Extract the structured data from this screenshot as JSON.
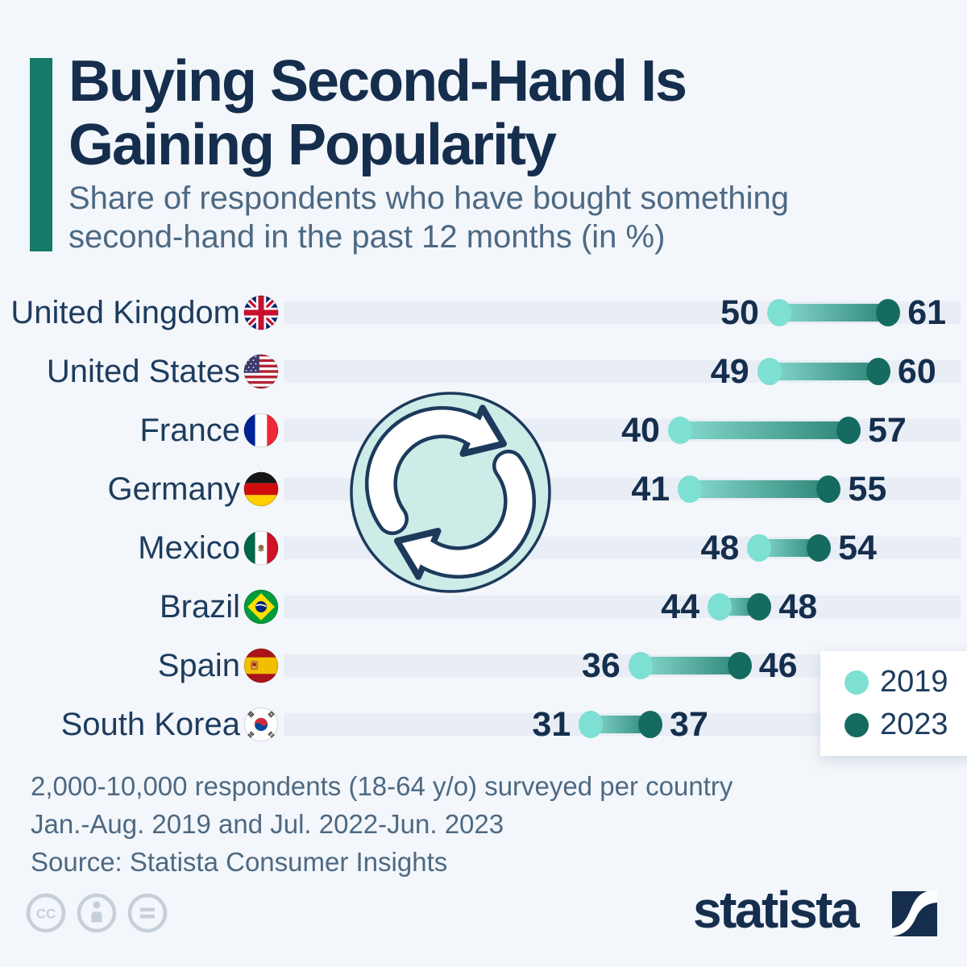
{
  "header": {
    "title_line1": "Buying Second-Hand Is",
    "title_line2": "Gaining Popularity",
    "subtitle": "Share of respondents who have bought something second-hand in the past 12 months (in %)"
  },
  "chart_data": {
    "type": "dumbbell",
    "title": "Buying Second-Hand Is Gaining Popularity",
    "subtitle": "Share of respondents who have bought something second-hand in the past 12 months (in %)",
    "categories": [
      "United Kingdom",
      "United States",
      "France",
      "Germany",
      "Mexico",
      "Brazil",
      "Spain",
      "South Korea"
    ],
    "flags": [
      "gb",
      "us",
      "fr",
      "de",
      "mx",
      "br",
      "es",
      "kr"
    ],
    "series": [
      {
        "name": "2019",
        "values": [
          50,
          49,
          40,
          41,
          48,
          44,
          36,
          31
        ],
        "color": "#7de0d2"
      },
      {
        "name": "2023",
        "values": [
          61,
          60,
          57,
          55,
          54,
          48,
          46,
          37
        ],
        "color": "#156b60"
      }
    ],
    "xlim": [
      0,
      68.3
    ],
    "grid": false,
    "legend_position": "bottom-right",
    "center_icon": "recycle-icon"
  },
  "footer": {
    "note_line1": "2,000-10,000 respondents (18-64 y/o) surveyed per country",
    "note_line2": "Jan.-Aug. 2019 and Jul. 2022-Jun. 2023",
    "source": "Source: Statista Consumer Insights"
  },
  "branding": {
    "logo_text": "statista",
    "cc_icons": [
      "cc-icon",
      "cc-by-icon",
      "cc-nd-icon"
    ]
  },
  "colors": {
    "background": "#f3f6fa",
    "track": "#e9edf5",
    "navy": "#152e4d",
    "slate": "#4d6983",
    "teal_accent": "#157a67",
    "dot_2019": "#7de0d2",
    "dot_2023": "#156b60"
  }
}
